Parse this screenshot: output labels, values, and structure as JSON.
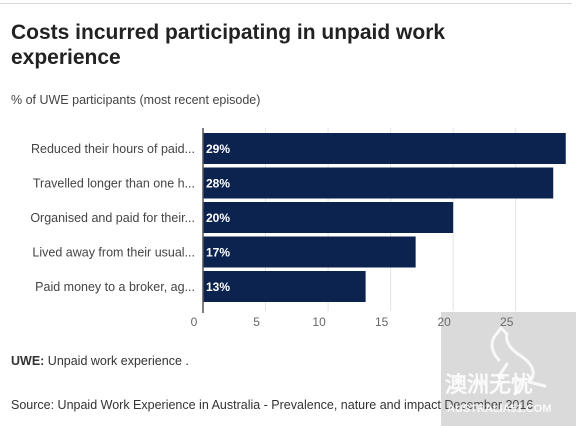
{
  "header": {
    "title": "Costs incurred participating in unpaid work experience",
    "subtitle": "% of UWE participants (most recent episode)"
  },
  "chart_data": {
    "type": "bar",
    "orientation": "horizontal",
    "categories": [
      "Reduced their hours of paid...",
      "Travelled longer than one h...",
      "Organised and paid for their...",
      "Lived away from their usual...",
      "Paid money to a broker, ag..."
    ],
    "values": [
      29,
      28,
      20,
      17,
      13
    ],
    "value_labels": [
      "29%",
      "28%",
      "20%",
      "17%",
      "13%"
    ],
    "x_ticks": [
      0,
      5,
      10,
      15,
      20,
      25
    ],
    "xlim": [
      0,
      29.5
    ],
    "grid": true,
    "bar_color": "#0c2350"
  },
  "footer": {
    "note_abbr": "UWE:",
    "note_text": " Unpaid work experience .",
    "source": "Source: Unpaid Work Experience in Australia - Prevalence, nature and impact December 2016"
  },
  "watermark": {
    "text_cn": "澳洲无忧",
    "text_en": "AUSTRALIA51.COM"
  }
}
